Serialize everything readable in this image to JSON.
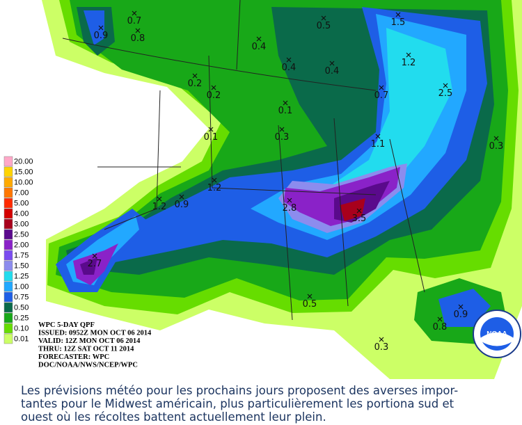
{
  "info": [
    "WPC 5-DAY QPF",
    "ISSUED: 0952Z MON OCT 06 2014",
    "VALID: 12Z MON OCT 06 2014",
    "THRU: 12Z SAT OCT 11 2014",
    "FORECASTER: WPC",
    "DOC/NOAA/NWS/NCEP/WPC"
  ],
  "legend": [
    {
      "label": "20.00",
      "color": "#ffa8c8"
    },
    {
      "label": "15.00",
      "color": "#ffd400"
    },
    {
      "label": "10.00",
      "color": "#ffaa00"
    },
    {
      "label": "7.00",
      "color": "#ff7700"
    },
    {
      "label": "5.00",
      "color": "#ff2a00"
    },
    {
      "label": "4.00",
      "color": "#d40000"
    },
    {
      "label": "3.00",
      "color": "#a8001c"
    },
    {
      "label": "2.50",
      "color": "#5a0a8c"
    },
    {
      "label": "2.00",
      "color": "#8a22c8"
    },
    {
      "label": "1.75",
      "color": "#7a4cf0"
    },
    {
      "label": "1.50",
      "color": "#8c8cee"
    },
    {
      "label": "1.25",
      "color": "#22dcee"
    },
    {
      "label": "1.00",
      "color": "#22a8ff"
    },
    {
      "label": "0.75",
      "color": "#1e5ee6"
    },
    {
      "label": "0.50",
      "color": "#0a6a4a"
    },
    {
      "label": "0.25",
      "color": "#18a818"
    },
    {
      "label": "0.10",
      "color": "#66dd00"
    },
    {
      "label": "0.01",
      "color": "#ccff66"
    }
  ],
  "points": [
    "0.5",
    "1.5",
    "0.7",
    "0.8",
    "0.9",
    "0.4",
    "0.4",
    "0.4",
    "1.2",
    "0.2",
    "0.2",
    "0.7",
    "2.5",
    "0.1",
    "0.1",
    "0.3",
    "1.1",
    "0.3",
    "1.2",
    "1.2",
    "0.9",
    "2.8",
    "3.5",
    "2.7",
    "0.5",
    "0.8",
    "0.9",
    "0.3"
  ],
  "logo": "NOAA",
  "caption": [
    "Les prévisions météo pour les prochains jours proposent des averses impor-",
    "tantes pour le Midwest américain, plus particulièrement les portiona sud et",
    "ouest où les récoltes battent actuellement leur plein."
  ]
}
